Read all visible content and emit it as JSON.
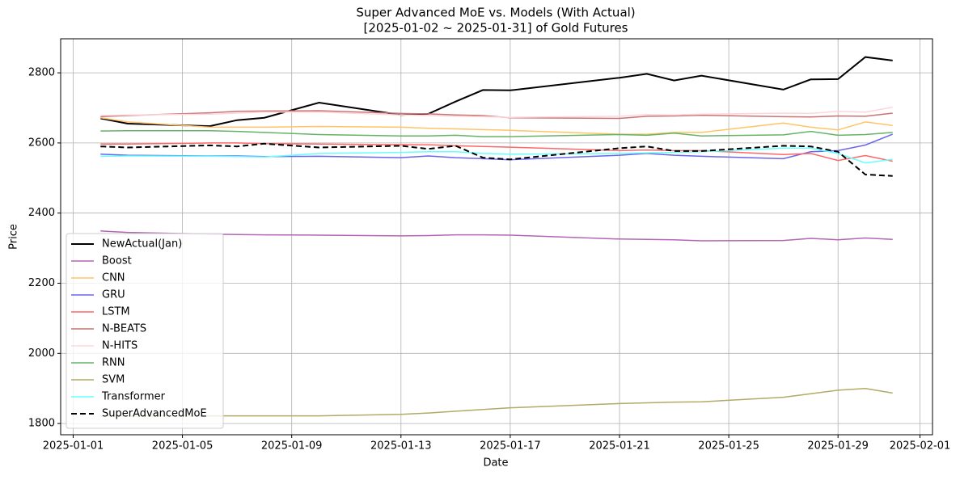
{
  "chart_data": {
    "type": "line",
    "title": "Super Advanced MoE vs. Models (With Actual)",
    "subtitle": "[2025-01-02 ~ 2025-01-31] of Gold Futures",
    "x_label": "Date",
    "y_label": "Price",
    "x": [
      "2025-01-02",
      "2025-01-03",
      "2025-01-06",
      "2025-01-07",
      "2025-01-08",
      "2025-01-10",
      "2025-01-13",
      "2025-01-14",
      "2025-01-15",
      "2025-01-16",
      "2025-01-17",
      "2025-01-21",
      "2025-01-22",
      "2025-01-23",
      "2025-01-24",
      "2025-01-27",
      "2025-01-28",
      "2025-01-29",
      "2025-01-30",
      "2025-01-31"
    ],
    "xlim": [
      "2024-12-31T13:00",
      "2025-02-01T11:00"
    ],
    "xticks": [
      "2025-01-01",
      "2025-01-05",
      "2025-01-09",
      "2025-01-13",
      "2025-01-17",
      "2025-01-21",
      "2025-01-25",
      "2025-01-29",
      "2025-02-01"
    ],
    "ylim": [
      1768,
      2897
    ],
    "yticks": [
      1800,
      2000,
      2200,
      2400,
      2600,
      2800
    ],
    "grid": true,
    "legend": "lower left",
    "series": [
      {
        "name": "NewActual(Jan)",
        "color": "#000000",
        "width": 2,
        "linestyle": "solid",
        "values": [
          2670,
          2655,
          2648,
          2665,
          2672,
          2715,
          2680,
          2683,
          2718,
          2751,
          2750,
          2786,
          2797,
          2778,
          2792,
          2752,
          2781,
          2782,
          2845,
          2835
        ]
      },
      {
        "name": "Boost",
        "color": "#b366b3",
        "width": 1.5,
        "linestyle": "solid",
        "values": [
          2349,
          2345,
          2340,
          2339,
          2338,
          2337,
          2335,
          2336,
          2338,
          2338,
          2337,
          2326,
          2325,
          2324,
          2321,
          2322,
          2328,
          2324,
          2329,
          2325
        ]
      },
      {
        "name": "CNN",
        "color": "#ffc466",
        "width": 1.5,
        "linestyle": "solid",
        "values": [
          2672,
          2660,
          2645,
          2645,
          2645,
          2647,
          2645,
          2642,
          2640,
          2638,
          2636,
          2625,
          2625,
          2630,
          2630,
          2657,
          2645,
          2637,
          2660,
          2650
        ]
      },
      {
        "name": "GRU",
        "color": "#6666ee",
        "width": 1.5,
        "linestyle": "solid",
        "values": [
          2568,
          2565,
          2563,
          2563,
          2561,
          2562,
          2558,
          2563,
          2558,
          2555,
          2552,
          2565,
          2570,
          2565,
          2562,
          2555,
          2575,
          2578,
          2594,
          2625
        ]
      },
      {
        "name": "LSTM",
        "color": "#ff6666",
        "width": 1.5,
        "linestyle": "solid",
        "values": [
          2597,
          2597,
          2600,
          2600,
          2598,
          2597,
          2595,
          2595,
          2592,
          2590,
          2588,
          2578,
          2580,
          2578,
          2578,
          2567,
          2570,
          2550,
          2564,
          2548
        ]
      },
      {
        "name": "N-BEATS",
        "color": "#c87474",
        "width": 1.5,
        "linestyle": "solid",
        "values": [
          2675,
          2678,
          2686,
          2690,
          2691,
          2692,
          2684,
          2683,
          2680,
          2678,
          2672,
          2670,
          2676,
          2677,
          2679,
          2675,
          2674,
          2677,
          2676,
          2685
        ]
      },
      {
        "name": "N-HITS",
        "color": "#ffd5dc",
        "width": 1.5,
        "linestyle": "solid",
        "values": [
          2678,
          2680,
          2682,
          2685,
          2688,
          2688,
          2680,
          2678,
          2676,
          2675,
          2673,
          2676,
          2681,
          2680,
          2682,
          2685,
          2684,
          2690,
          2688,
          2702
        ]
      },
      {
        "name": "RNN",
        "color": "#66b366",
        "width": 1.5,
        "linestyle": "solid",
        "values": [
          2634,
          2635,
          2635,
          2633,
          2630,
          2624,
          2620,
          2620,
          2622,
          2618,
          2618,
          2624,
          2622,
          2628,
          2620,
          2623,
          2633,
          2622,
          2624,
          2630
        ]
      },
      {
        "name": "SVM",
        "color": "#b2aa66",
        "width": 1.5,
        "linestyle": "solid",
        "values": [
          1822,
          1822,
          1822,
          1822,
          1822,
          1822,
          1826,
          1830,
          1835,
          1840,
          1845,
          1857,
          1859,
          1861,
          1862,
          1875,
          1885,
          1895,
          1900,
          1887
        ]
      },
      {
        "name": "Transformer",
        "color": "#66ffff",
        "width": 1.5,
        "linestyle": "solid",
        "values": [
          2562,
          2563,
          2562,
          2561,
          2560,
          2570,
          2573,
          2575,
          2575,
          2570,
          2568,
          2570,
          2572,
          2573,
          2575,
          2585,
          2585,
          2570,
          2543,
          2553
        ]
      },
      {
        "name": "SuperAdvancedMoE",
        "color": "#000000",
        "width": 2,
        "linestyle": "dashed",
        "values": [
          2590,
          2587,
          2593,
          2590,
          2598,
          2587,
          2592,
          2583,
          2592,
          2558,
          2553,
          2585,
          2590,
          2577,
          2577,
          2592,
          2590,
          2575,
          2510,
          2506
        ]
      }
    ]
  }
}
